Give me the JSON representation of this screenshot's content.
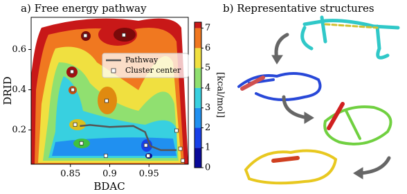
{
  "chart_data": {
    "type": "contour",
    "title": "a) Free energy pathway",
    "x_label": "BDAC",
    "y_label": "DRID",
    "xlim": [
      0.8,
      1.0
    ],
    "xticks": [
      0.85,
      0.9,
      0.95
    ],
    "ylim": [
      0.03,
      0.76
    ],
    "yticks": [
      0.2,
      0.4,
      0.6
    ],
    "colorbar_label": "[kcal/mol]",
    "clim": [
      0,
      7.3
    ],
    "cticks": [
      0,
      1,
      2,
      3,
      4,
      5,
      6,
      7
    ],
    "colors": [
      "#0a0a9a",
      "#1840e8",
      "#2090f0",
      "#38d0e0",
      "#90e070",
      "#f0e040",
      "#f07820",
      "#c81818"
    ],
    "legend": "upper right",
    "series": [
      {
        "name": "Pathway",
        "type": "line",
        "color": "#555555",
        "x": [
          0.862,
          0.875,
          0.9,
          0.93,
          0.945,
          0.952,
          0.965,
          0.985
        ],
        "y": [
          0.22,
          0.225,
          0.215,
          0.22,
          0.19,
          0.12,
          0.1,
          0.1
        ]
      },
      {
        "name": "Cluster center",
        "type": "scatter",
        "color": "#ffffff",
        "x": [
          0.869,
          0.918,
          0.852,
          0.853,
          0.896,
          0.856,
          0.864,
          0.895,
          0.946,
          0.949,
          0.985,
          0.99,
          0.993
        ],
        "y": [
          0.669,
          0.672,
          0.49,
          0.4,
          0.345,
          0.227,
          0.134,
          0.072,
          0.124,
          0.072,
          0.197,
          0.107,
          0.048
        ]
      }
    ]
  },
  "panel_b": {
    "title": "b) Representative structures"
  }
}
